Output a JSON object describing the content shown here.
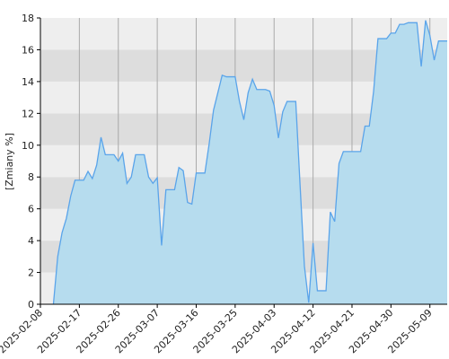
{
  "chart_data": {
    "type": "area",
    "y_label": "[Zmiany %]",
    "x": [
      "2025-02-11",
      "2025-02-12",
      "2025-02-13",
      "2025-02-14",
      "2025-02-15",
      "2025-02-16",
      "2025-02-17",
      "2025-02-18",
      "2025-02-19",
      "2025-02-20",
      "2025-02-21",
      "2025-02-22",
      "2025-02-23",
      "2025-02-24",
      "2025-02-25",
      "2025-02-26",
      "2025-02-27",
      "2025-02-28",
      "2025-03-01",
      "2025-03-02",
      "2025-03-03",
      "2025-03-04",
      "2025-03-05",
      "2025-03-06",
      "2025-03-07",
      "2025-03-08",
      "2025-03-09",
      "2025-03-10",
      "2025-03-11",
      "2025-03-12",
      "2025-03-13",
      "2025-03-14",
      "2025-03-15",
      "2025-03-16",
      "2025-03-17",
      "2025-03-18",
      "2025-03-19",
      "2025-03-20",
      "2025-03-21",
      "2025-03-22",
      "2025-03-23",
      "2025-03-24",
      "2025-03-25",
      "2025-03-26",
      "2025-03-27",
      "2025-03-28",
      "2025-03-29",
      "2025-03-30",
      "2025-03-31",
      "2025-04-01",
      "2025-04-02",
      "2025-04-03",
      "2025-04-04",
      "2025-04-05",
      "2025-04-06",
      "2025-04-07",
      "2025-04-08",
      "2025-04-09",
      "2025-04-10",
      "2025-04-11",
      "2025-04-12",
      "2025-04-13",
      "2025-04-14",
      "2025-04-15",
      "2025-04-16",
      "2025-04-17",
      "2025-04-18",
      "2025-04-19",
      "2025-04-20",
      "2025-04-21",
      "2025-04-22",
      "2025-04-23",
      "2025-04-24",
      "2025-04-25",
      "2025-04-26",
      "2025-04-27",
      "2025-04-28",
      "2025-04-29",
      "2025-04-30",
      "2025-05-01",
      "2025-05-02",
      "2025-05-03",
      "2025-05-04",
      "2025-05-05",
      "2025-05-06",
      "2025-05-07",
      "2025-05-08",
      "2025-05-09",
      "2025-05-10",
      "2025-05-11",
      "2025-05-12",
      "2025-05-13"
    ],
    "values": [
      0,
      3.0,
      4.5,
      5.4,
      6.8,
      7.8,
      7.8,
      7.8,
      8.35,
      7.9,
      8.75,
      10.5,
      9.4,
      9.4,
      9.4,
      9.0,
      9.5,
      7.6,
      8.0,
      9.4,
      9.4,
      9.4,
      8.0,
      7.6,
      7.95,
      3.7,
      7.2,
      7.2,
      7.2,
      8.6,
      8.4,
      6.4,
      6.3,
      8.25,
      8.25,
      8.25,
      10.1,
      12.2,
      13.3,
      14.4,
      14.3,
      14.3,
      14.3,
      12.75,
      11.6,
      13.3,
      14.15,
      13.5,
      13.5,
      13.5,
      13.4,
      12.5,
      10.45,
      12.1,
      12.75,
      12.75,
      12.75,
      7.5,
      2.4,
      0.1,
      3.85,
      0.85,
      0.85,
      0.85,
      5.8,
      5.2,
      8.85,
      9.6,
      9.6,
      9.6,
      9.6,
      9.6,
      11.2,
      11.2,
      13.4,
      16.7,
      16.7,
      16.7,
      17.05,
      17.05,
      17.6,
      17.6,
      17.7,
      17.7,
      17.7,
      14.95,
      17.85,
      16.9,
      15.35,
      16.55,
      16.55,
      16.55
    ],
    "line_color": "#5aa4ea",
    "fill_color": "#b6dcee",
    "xlim": [
      "2025-02-08",
      "2025-05-13"
    ],
    "xticks": [
      "2025-02-08",
      "2025-02-17",
      "2025-02-26",
      "2025-03-07",
      "2025-03-16",
      "2025-03-25",
      "2025-04-03",
      "2025-04-12",
      "2025-04-21",
      "2025-04-30",
      "2025-05-09"
    ],
    "ylim": [
      0,
      18
    ],
    "yticks": [
      0,
      2,
      4,
      6,
      8,
      10,
      12,
      14,
      16,
      18
    ],
    "grid": true,
    "band_colors": [
      "#eeeeee",
      "#dddddd"
    ],
    "grid_color": "#aaaaaa"
  }
}
